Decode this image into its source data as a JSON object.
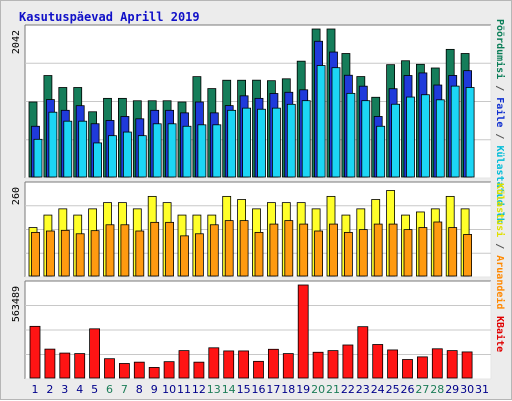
{
  "title": "Kasutuspäevad Aprill 2019",
  "legend": {
    "top": [
      {
        "label": "Pöördumisi",
        "color": "#0b7e58"
      },
      {
        "sep": " / ",
        "color": "#555555"
      },
      {
        "label": "Faile",
        "color": "#1030d0"
      },
      {
        "sep": " / ",
        "color": "#555555"
      },
      {
        "label": "Külastatud lk",
        "color": "#00bcd8"
      }
    ],
    "middle": [
      {
        "label": "Külastusi",
        "color": "#e0e000"
      },
      {
        "sep": " / ",
        "color": "#555555"
      },
      {
        "label": "Aruandeid",
        "color": "#ff8800"
      }
    ],
    "bottom": [
      {
        "label": "KBaite",
        "color": "#e00000"
      }
    ]
  },
  "colors": {
    "hits": "#157d5a",
    "files": "#1f3adb",
    "pages": "#1cd6f5",
    "visits": "#ffff2a",
    "sites": "#ff9a10",
    "kbytes": "#ff1414",
    "day_normal": "#00008b",
    "day_weekend": "#1c7d58"
  },
  "chart_data": [
    {
      "type": "bar",
      "categories": [
        "1",
        "2",
        "3",
        "4",
        "5",
        "6",
        "7",
        "8",
        "9",
        "10",
        "11",
        "12",
        "13",
        "14",
        "15",
        "16",
        "17",
        "18",
        "19",
        "20",
        "21",
        "22",
        "23",
        "24",
        "25",
        "26",
        "27",
        "28",
        "29",
        "30",
        "31"
      ],
      "weekend": [
        "6",
        "7",
        "13",
        "14",
        "20",
        "21",
        "27",
        "28"
      ],
      "y_tick_label": "2042",
      "ylim": [
        0,
        2042
      ],
      "series": [
        {
          "name": "Pöördumisi",
          "values": [
            1035,
            1400,
            1235,
            1235,
            900,
            1085,
            1085,
            1052,
            1052,
            1052,
            1035,
            1385,
            1220,
            1335,
            1335,
            1336,
            1329,
            1355,
            1598,
            2042,
            2042,
            1704,
            1386,
            1100,
            1550,
            1604,
            1555,
            1504,
            1761,
            1704,
            0
          ]
        },
        {
          "name": "Faile",
          "values": [
            700,
            1068,
            920,
            984,
            735,
            780,
            835,
            803,
            920,
            920,
            885,
            1035,
            885,
            985,
            1120,
            1085,
            1152,
            1169,
            1203,
            1873,
            1724,
            1404,
            1253,
            835,
            1218,
            1400,
            1436,
            1269,
            1401,
            1467,
            0
          ]
        },
        {
          "name": "Külastatud lk",
          "values": [
            520,
            894,
            770,
            770,
            470,
            570,
            620,
            570,
            734,
            734,
            700,
            720,
            720,
            920,
            950,
            935,
            950,
            1003,
            1053,
            1538,
            1508,
            1154,
            1053,
            700,
            1004,
            1103,
            1135,
            1065,
            1254,
            1235,
            0
          ]
        }
      ]
    },
    {
      "type": "bar",
      "categories": [
        "1",
        "2",
        "3",
        "4",
        "5",
        "6",
        "7",
        "8",
        "9",
        "10",
        "11",
        "12",
        "13",
        "14",
        "15",
        "16",
        "17",
        "18",
        "19",
        "20",
        "21",
        "22",
        "23",
        "24",
        "25",
        "26",
        "27",
        "28",
        "29",
        "30",
        "31"
      ],
      "y_tick_label": "260",
      "ylim": [
        0,
        260
      ],
      "series": [
        {
          "name": "Külastusi",
          "values": [
            140,
            176,
            194,
            176,
            194,
            212,
            212,
            194,
            230,
            212,
            176,
            176,
            176,
            230,
            221,
            194,
            212,
            212,
            212,
            194,
            230,
            176,
            194,
            221,
            247,
            176,
            185,
            194,
            230,
            194,
            0
          ]
        },
        {
          "name": "Aruandeid",
          "values": [
            126,
            130,
            132,
            122,
            131,
            148,
            148,
            130,
            155,
            155,
            116,
            122,
            148,
            160,
            160,
            126,
            150,
            160,
            150,
            130,
            150,
            126,
            134,
            150,
            150,
            134,
            140,
            156,
            140,
            120,
            0
          ]
        }
      ]
    },
    {
      "type": "bar",
      "categories": [
        "1",
        "2",
        "3",
        "4",
        "5",
        "6",
        "7",
        "8",
        "9",
        "10",
        "11",
        "12",
        "13",
        "14",
        "15",
        "16",
        "17",
        "18",
        "19",
        "20",
        "21",
        "22",
        "23",
        "24",
        "25",
        "26",
        "27",
        "28",
        "29",
        "30",
        "31"
      ],
      "y_tick_label": "563489",
      "ylim": [
        0,
        563489
      ],
      "series": [
        {
          "name": "KBaite",
          "values": [
            313000,
            175000,
            151000,
            148000,
            298000,
            117000,
            88000,
            96000,
            64000,
            99000,
            166000,
            96000,
            183000,
            164000,
            164000,
            101000,
            174000,
            148000,
            563489,
            156000,
            166000,
            200000,
            311000,
            203000,
            170000,
            112000,
            128000,
            177000,
            166000,
            158000,
            0
          ]
        }
      ]
    }
  ]
}
